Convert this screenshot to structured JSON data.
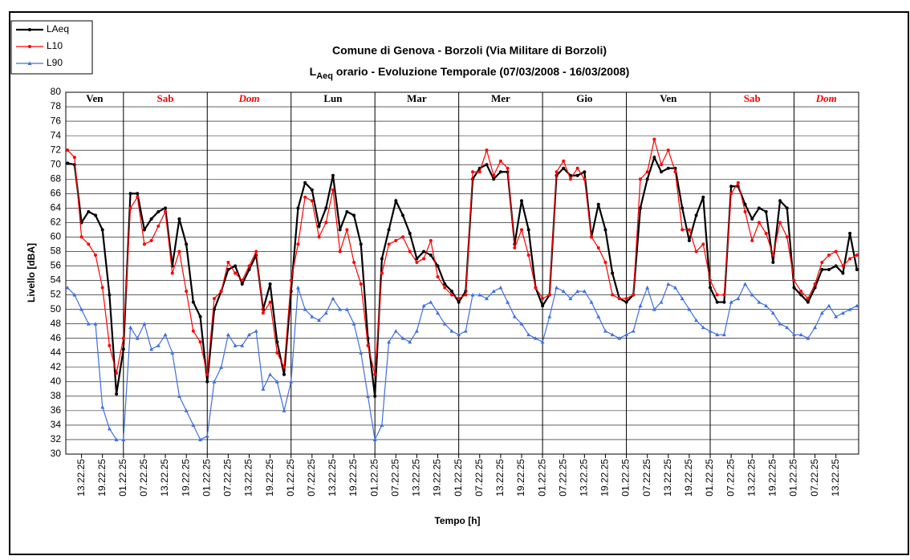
{
  "chart_data": {
    "type": "line",
    "title": "Comune di Genova - Borzoli (Via Militare di Borzoli)",
    "subtitle_main": "L",
    "subtitle_sub": "Aeq",
    "subtitle_rest": " orario - Evoluzione Temporale (07/03/2008 - 16/03/2008)",
    "xlabel": "Tempo [h]",
    "ylabel": "Livello [dBA]",
    "xlim": [
      8.5,
      235.5
    ],
    "ylim": [
      30,
      80
    ],
    "yticks": [
      30,
      32,
      34,
      36,
      38,
      40,
      42,
      44,
      46,
      48,
      50,
      52,
      54,
      56,
      58,
      60,
      62,
      64,
      66,
      68,
      70,
      72,
      74,
      76,
      78,
      80
    ],
    "grid": true,
    "legend": "top-left",
    "xticks": [
      {
        "value": 13,
        "label": "13.22.25"
      },
      {
        "value": 19,
        "label": "19.22.25"
      },
      {
        "value": 25,
        "label": "01.22.25"
      },
      {
        "value": 31,
        "label": "07.22.25"
      },
      {
        "value": 37,
        "label": "13.22.25"
      },
      {
        "value": 43,
        "label": "19.22.25"
      },
      {
        "value": 49,
        "label": "01.22.25"
      },
      {
        "value": 55,
        "label": "07.22.25"
      },
      {
        "value": 61,
        "label": "13.22.25"
      },
      {
        "value": 67,
        "label": "19.22.25"
      },
      {
        "value": 73,
        "label": "01.22.25"
      },
      {
        "value": 79,
        "label": "07.22.25"
      },
      {
        "value": 85,
        "label": "13.22.25"
      },
      {
        "value": 91,
        "label": "19.22.25"
      },
      {
        "value": 97,
        "label": "01.22.25"
      },
      {
        "value": 103,
        "label": "07.22.25"
      },
      {
        "value": 109,
        "label": "13.22.25"
      },
      {
        "value": 115,
        "label": "19.22.25"
      },
      {
        "value": 121,
        "label": "01.22.25"
      },
      {
        "value": 127,
        "label": "07.22.25"
      },
      {
        "value": 133,
        "label": "13.22.25"
      },
      {
        "value": 139,
        "label": "19.22.25"
      },
      {
        "value": 145,
        "label": "01.22.25"
      },
      {
        "value": 151,
        "label": "07.22.25"
      },
      {
        "value": 157,
        "label": "13.22.25"
      },
      {
        "value": 163,
        "label": "19.22.25"
      },
      {
        "value": 169,
        "label": "01.22.25"
      },
      {
        "value": 175,
        "label": "07.22.25"
      },
      {
        "value": 181,
        "label": "13.22.25"
      },
      {
        "value": 187,
        "label": "19.22.25"
      },
      {
        "value": 193,
        "label": "01.22.25"
      },
      {
        "value": 199,
        "label": "07.22.25"
      },
      {
        "value": 205,
        "label": "13.22.25"
      },
      {
        "value": 211,
        "label": "19.22.25"
      },
      {
        "value": 217,
        "label": "01.22.25"
      },
      {
        "value": 223,
        "label": "07.22.25"
      },
      {
        "value": 229,
        "label": "13.22.25"
      }
    ],
    "day_labels": [
      {
        "text": "Ven",
        "color": "#000000",
        "italic": false
      },
      {
        "text": "Sab",
        "color": "#ff0000",
        "italic": false
      },
      {
        "text": "Dom",
        "color": "#ff0000",
        "italic": true
      },
      {
        "text": "Lun",
        "color": "#000000",
        "italic": false
      },
      {
        "text": "Mar",
        "color": "#000000",
        "italic": false
      },
      {
        "text": "Mer",
        "color": "#000000",
        "italic": false
      },
      {
        "text": "Gio",
        "color": "#000000",
        "italic": false
      },
      {
        "text": "Ven",
        "color": "#000000",
        "italic": false
      },
      {
        "text": "Sab",
        "color": "#ff0000",
        "italic": false
      },
      {
        "text": "Dom",
        "color": "#ff0000",
        "italic": true
      }
    ],
    "x": [
      9,
      11,
      13,
      15,
      17,
      19,
      21,
      23,
      25,
      27,
      29,
      31,
      33,
      35,
      37,
      39,
      41,
      43,
      45,
      47,
      49,
      51,
      53,
      55,
      57,
      59,
      61,
      63,
      65,
      67,
      69,
      71,
      73,
      75,
      77,
      79,
      81,
      83,
      85,
      87,
      89,
      91,
      93,
      95,
      97,
      99,
      101,
      103,
      105,
      107,
      109,
      111,
      113,
      115,
      117,
      119,
      121,
      123,
      125,
      127,
      129,
      131,
      133,
      135,
      137,
      139,
      141,
      143,
      145,
      147,
      149,
      151,
      153,
      155,
      157,
      159,
      161,
      163,
      165,
      167,
      169,
      171,
      173,
      175,
      177,
      179,
      181,
      183,
      185,
      187,
      189,
      191,
      193,
      195,
      197,
      199,
      201,
      203,
      205,
      207,
      209,
      211,
      213,
      215,
      217,
      219,
      221,
      223,
      225,
      227,
      229,
      231,
      233,
      235
    ],
    "series": [
      {
        "name": "LAeq",
        "color": "#000000",
        "marker": "circle",
        "values": [
          70.2,
          70,
          62,
          63.5,
          63,
          61,
          52,
          38.3,
          44.5,
          66,
          66,
          61,
          62.5,
          63.5,
          64,
          56,
          62.5,
          59,
          51,
          49,
          40,
          50,
          52.5,
          55.5,
          56,
          53.5,
          55.5,
          57.5,
          50,
          53.5,
          45.5,
          41,
          52.5,
          64,
          67.5,
          66.5,
          61.5,
          64,
          68.5,
          61,
          63.5,
          63,
          59,
          46,
          38,
          57,
          61,
          65,
          63,
          60.5,
          57,
          58,
          57.5,
          56,
          53.5,
          52.5,
          51,
          52.5,
          68,
          69.5,
          70,
          68,
          69,
          69,
          59,
          65,
          61,
          53,
          50.5,
          52,
          68.5,
          69.5,
          68.5,
          68.5,
          69,
          60,
          64.5,
          61,
          55,
          51.5,
          51,
          52,
          64,
          68,
          71,
          69,
          69.5,
          69.5,
          64,
          59.5,
          63,
          65.5,
          53,
          51,
          51,
          67,
          67,
          64.5,
          62.5,
          64,
          63.5,
          56.5,
          65,
          64,
          53,
          52,
          51,
          53,
          55.5,
          55.5,
          56,
          55,
          60.5,
          55.5
        ]
      },
      {
        "name": "L10",
        "color": "#ff0000",
        "marker": "circle",
        "values": [
          72,
          71,
          60,
          59,
          57.5,
          53,
          45,
          41.2,
          46,
          64,
          65.5,
          59,
          59.5,
          61.5,
          63.5,
          55,
          58,
          52.5,
          47,
          45.5,
          41,
          51.5,
          52.5,
          56.5,
          55,
          54,
          56,
          58,
          49.5,
          51,
          44,
          42,
          54,
          59,
          65.5,
          65,
          60,
          62,
          66.5,
          58,
          61,
          56.5,
          53.5,
          45,
          41,
          55,
          59,
          59.5,
          60,
          58,
          56.5,
          57,
          59.5,
          54.5,
          53,
          52,
          51.5,
          52,
          69,
          69,
          72,
          68.5,
          70.5,
          69.5,
          58.5,
          61,
          57.5,
          53,
          51.5,
          52,
          69,
          70.5,
          68,
          69.5,
          68,
          60,
          58.5,
          56.5,
          52,
          51.5,
          51.5,
          52,
          68,
          69,
          73.5,
          70,
          72,
          69,
          61,
          61,
          58,
          59,
          54,
          52,
          52,
          66,
          67.5,
          63.5,
          59.5,
          62,
          60.5,
          57.5,
          62,
          60,
          54,
          52.5,
          51.5,
          53.5,
          56.5,
          57.5,
          58,
          56,
          57,
          57.5
        ]
      },
      {
        "name": "L90",
        "color": "#3f6fe0",
        "marker": "triangle",
        "values": [
          53,
          52,
          50,
          48,
          48,
          36.5,
          33.5,
          32,
          32,
          47.5,
          46,
          48,
          44.5,
          45,
          46.5,
          44,
          38,
          36,
          34,
          32,
          32.5,
          40,
          42,
          46.5,
          45,
          45,
          46.5,
          47,
          39,
          41,
          40,
          36,
          40,
          53,
          50,
          49,
          48.5,
          49.5,
          51.5,
          50,
          50,
          48,
          44,
          38,
          32,
          34,
          45.5,
          47,
          46,
          45.5,
          47,
          50.5,
          51,
          49.5,
          48,
          47,
          46.5,
          47,
          52,
          52,
          51.5,
          52.5,
          53,
          51,
          49,
          48,
          46.5,
          46,
          45.5,
          49,
          53,
          52.5,
          51.5,
          52.5,
          52.5,
          51,
          49,
          47,
          46.5,
          46,
          46.5,
          47,
          50.5,
          53,
          50,
          51,
          53.5,
          53,
          51.5,
          50,
          48.5,
          47.5,
          47,
          46.5,
          46.5,
          51,
          51.5,
          53.5,
          52,
          51,
          50.5,
          49.5,
          48,
          47.5,
          46.5,
          46.5,
          46,
          47.5,
          49.5,
          50.5,
          49,
          49.5,
          50,
          50.5
        ]
      }
    ]
  }
}
